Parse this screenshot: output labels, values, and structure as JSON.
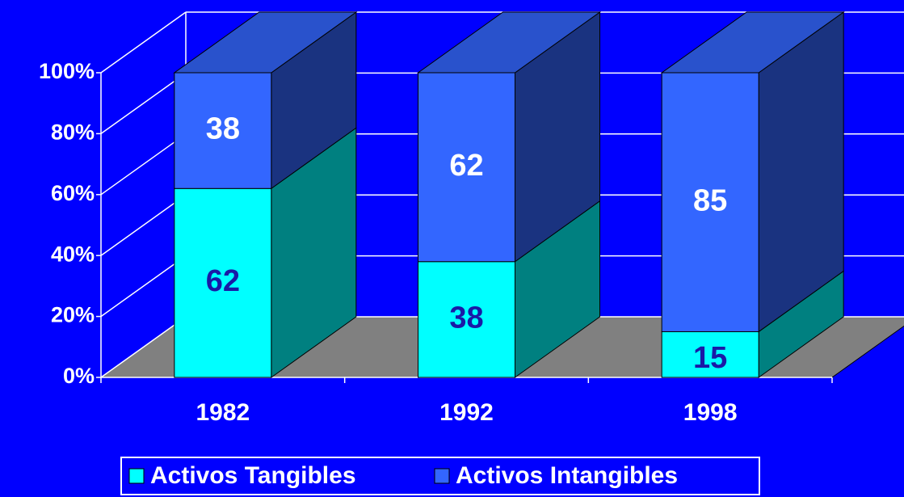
{
  "chart_data": {
    "type": "bar3d_stacked",
    "categories": [
      "1982",
      "1992",
      "1998"
    ],
    "series": [
      {
        "name": "Activos Tangibles",
        "color": "#00ffff",
        "label_color": "#1a1aa6",
        "values": [
          62,
          38,
          15
        ]
      },
      {
        "name": "Activos Intangibles",
        "color": "#3366ff",
        "label_color": "#ffffff",
        "values": [
          38,
          62,
          85
        ]
      }
    ],
    "ylim": [
      0,
      100
    ],
    "yticks": [
      {
        "value": 0,
        "label": "0%"
      },
      {
        "value": 20,
        "label": "20%"
      },
      {
        "value": 40,
        "label": "40%"
      },
      {
        "value": 60,
        "label": "60%"
      },
      {
        "value": 80,
        "label": "80%"
      },
      {
        "value": 100,
        "label": "100%"
      }
    ],
    "grid": true,
    "legend": "bottom"
  }
}
